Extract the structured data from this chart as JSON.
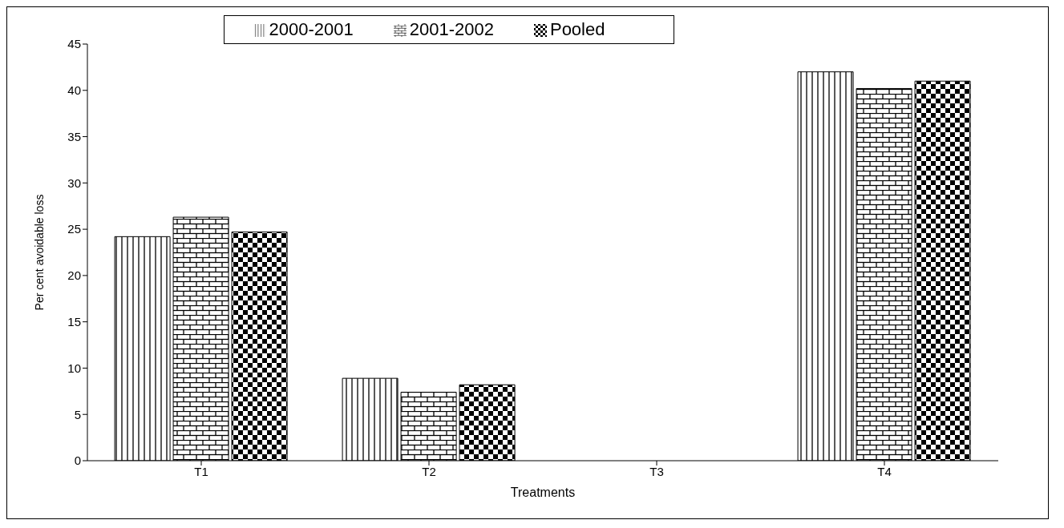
{
  "chart_data": {
    "type": "bar",
    "xlabel": "Treatments",
    "ylabel": "Per cent avoidable loss",
    "categories": [
      "T1",
      "T2",
      "T3",
      "T4"
    ],
    "series": [
      {
        "name": "2000-2001",
        "color": "#000000",
        "values": [
          24.2,
          8.9,
          0,
          42
        ]
      },
      {
        "name": "2001-2002",
        "color": "#000000",
        "values": [
          26.3,
          7.4,
          0,
          40.2
        ]
      },
      {
        "name": "Pooled",
        "color": "#000000",
        "values": [
          24.7,
          8.2,
          0,
          41
        ]
      }
    ],
    "ylim": [
      0,
      45
    ],
    "yticks": [
      0,
      5,
      10,
      15,
      20,
      25,
      30,
      35,
      40,
      45
    ],
    "grid": false,
    "legend": "top"
  }
}
